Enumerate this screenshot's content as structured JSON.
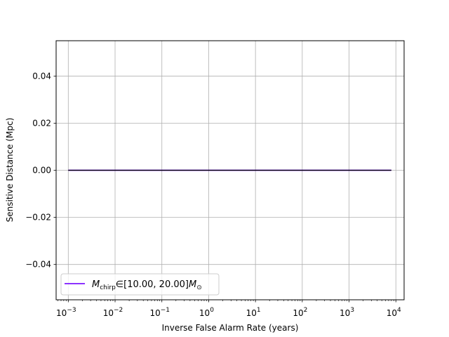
{
  "chart_data": {
    "type": "line",
    "xlabel": "Inverse False Alarm Rate (years)",
    "ylabel": "Sensitive Distance (Mpc)",
    "xscale": "log",
    "xlim": [
      0.00055,
      15000
    ],
    "ylim": [
      -0.055,
      0.055
    ],
    "grid": true,
    "legend_position": "lower-left",
    "x_ticks": [
      {
        "value": 0.001,
        "base": "10",
        "exp": "−3"
      },
      {
        "value": 0.01,
        "base": "10",
        "exp": "−2"
      },
      {
        "value": 0.1,
        "base": "10",
        "exp": "−1"
      },
      {
        "value": 1,
        "base": "10",
        "exp": "0"
      },
      {
        "value": 10,
        "base": "10",
        "exp": "1"
      },
      {
        "value": 100,
        "base": "10",
        "exp": "2"
      },
      {
        "value": 1000,
        "base": "10",
        "exp": "3"
      },
      {
        "value": 10000,
        "base": "10",
        "exp": "4"
      }
    ],
    "y_ticks": [
      {
        "value": 0.04,
        "label": "0.04"
      },
      {
        "value": 0.02,
        "label": "0.02"
      },
      {
        "value": 0.0,
        "label": "0.00"
      },
      {
        "value": -0.02,
        "label": "−0.02"
      },
      {
        "value": -0.04,
        "label": "−0.04"
      }
    ],
    "series": [
      {
        "name": "M_chirp ∈ [10.00, 20.00] M_⊙",
        "color": "#7b16ff",
        "x": [
          0.001,
          0.01,
          0.1,
          1,
          10,
          100,
          1000,
          8000
        ],
        "y": [
          0,
          0,
          0,
          0,
          0,
          0,
          0,
          0
        ]
      }
    ],
    "overlay_line": {
      "color": "#000000",
      "x": [
        0.001,
        8000
      ],
      "y": [
        0,
        0
      ]
    },
    "legend": {
      "symbol_main": "M",
      "symbol_sub": "chirp",
      "relation": "∈",
      "interval": "[10.00, 20.00]",
      "unit_main": "M",
      "unit_sub": "⊙"
    }
  }
}
